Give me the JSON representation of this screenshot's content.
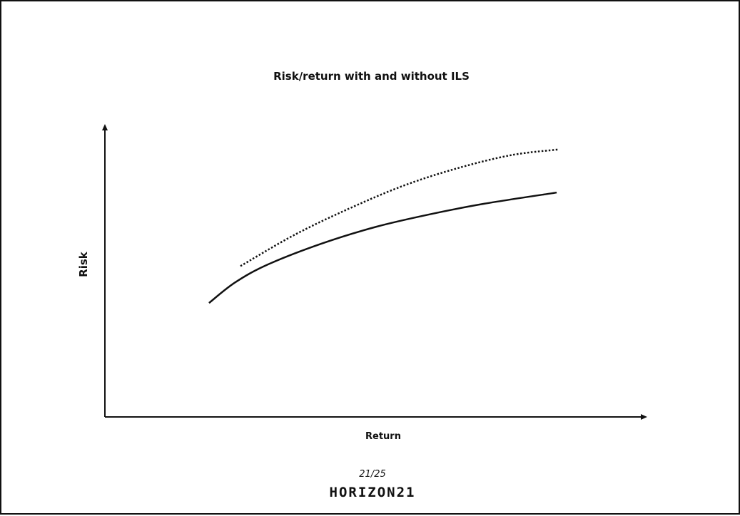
{
  "slide": {
    "page_number": "21/25",
    "logo_text": "Horizon21"
  },
  "chart_data": {
    "type": "line",
    "title": "Risk/return with and without ILS",
    "xlabel": "Return",
    "ylabel": "Risk",
    "xlim": [
      0,
      100
    ],
    "ylim": [
      0,
      100
    ],
    "grid": false,
    "legend": "none",
    "axes_style": "arrows-no-ticks",
    "series": [
      {
        "style": "dotted",
        "color": "#111111",
        "points": [
          [
            25.0,
            51.5
          ],
          [
            35.0,
            62.2
          ],
          [
            45.0,
            71.1
          ],
          [
            55.0,
            78.9
          ],
          [
            65.0,
            84.9
          ],
          [
            75.0,
            89.4
          ],
          [
            83.6,
            91.3
          ]
        ]
      },
      {
        "style": "solid",
        "color": "#111111",
        "points": [
          [
            19.2,
            38.9
          ],
          [
            24.0,
            45.9
          ],
          [
            30.0,
            52.0
          ],
          [
            40.0,
            59.2
          ],
          [
            50.0,
            64.9
          ],
          [
            60.0,
            69.2
          ],
          [
            70.0,
            72.8
          ],
          [
            83.3,
            76.6
          ]
        ]
      }
    ]
  }
}
